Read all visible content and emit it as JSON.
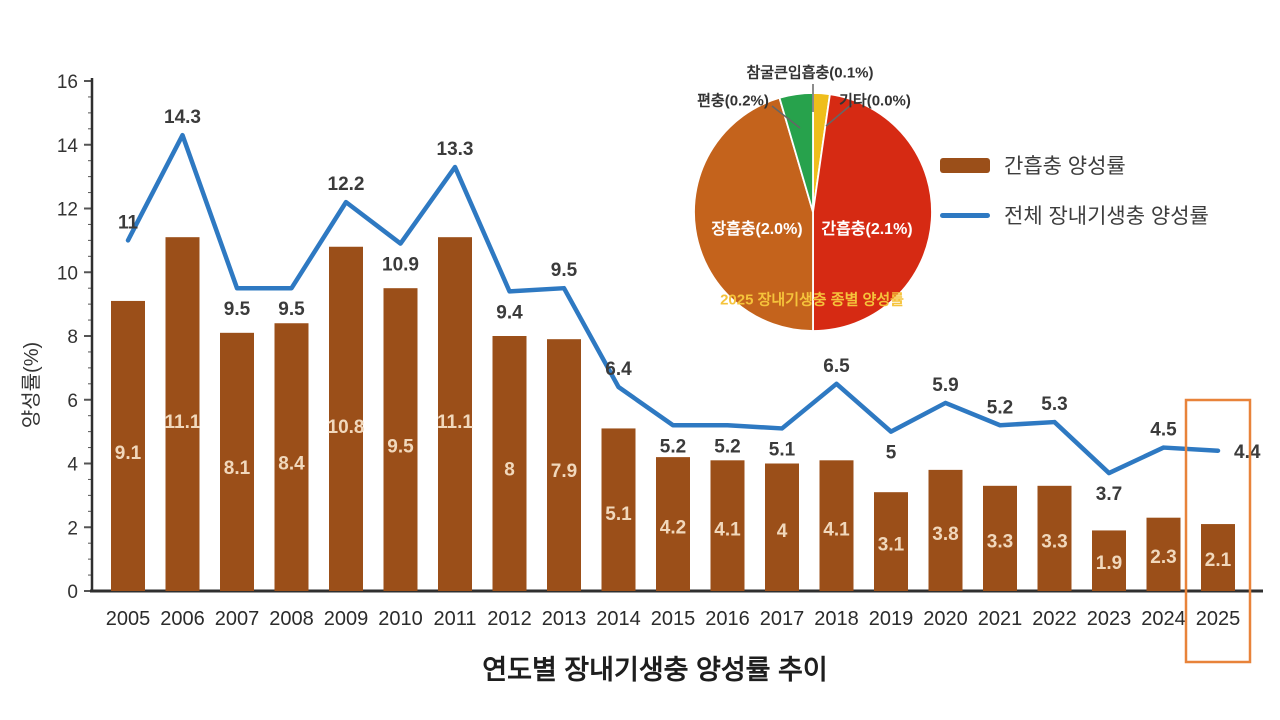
{
  "chart_data": [
    {
      "type": "bar+line",
      "title": "연도별 장내기생충 양성률 추이",
      "ylabel": "양성률(%)",
      "ylim": [
        0,
        16
      ],
      "ytick_step": 2,
      "grid": false,
      "legend_position": "top-right",
      "categories": [
        "2005",
        "2006",
        "2007",
        "2008",
        "2009",
        "2010",
        "2011",
        "2012",
        "2013",
        "2014",
        "2015",
        "2016",
        "2017",
        "2018",
        "2019",
        "2020",
        "2021",
        "2022",
        "2023",
        "2024",
        "2025"
      ],
      "series": [
        {
          "name": "간흡충 양성률",
          "type": "bar",
          "color": "#9B4F19",
          "values": [
            9.1,
            11.1,
            8.1,
            8.4,
            10.8,
            9.5,
            11.1,
            8,
            7.9,
            5.1,
            4.2,
            4.1,
            4,
            4.1,
            3.1,
            3.8,
            3.3,
            3.3,
            1.9,
            2.3,
            2.1
          ]
        },
        {
          "name": "전체 장내기생충 양성률",
          "type": "line",
          "color": "#2E79C2",
          "values": [
            11,
            14.3,
            9.5,
            9.5,
            12.2,
            10.9,
            13.3,
            9.4,
            9.5,
            6.4,
            5.2,
            5.2,
            5.1,
            6.5,
            5,
            5.9,
            5.2,
            5.3,
            3.7,
            4.5,
            4.4
          ],
          "label_positions": [
            "above",
            "above",
            "below",
            "below",
            "above",
            "below",
            "above",
            "below",
            "above",
            "above",
            "below",
            "below",
            "below",
            "above",
            "below",
            "above",
            "above",
            "above",
            "below",
            "above",
            "right"
          ]
        }
      ],
      "highlight": {
        "category": "2025",
        "box_color": "#E8833A"
      }
    },
    {
      "type": "pie",
      "title": "2025 장내기생충 종별 양성률",
      "title_color": "#F5C33B",
      "slices": [
        {
          "label": "간흡충(2.1%)",
          "value": 2.1,
          "color": "#D62A13",
          "label_style": "inside-right"
        },
        {
          "label": "장흡충(2.0%)",
          "value": 2.0,
          "color": "#C4631C",
          "label_style": "inside-left"
        },
        {
          "label": "편충(0.2%)",
          "value": 0.2,
          "color": "#27A24C",
          "label_style": "callout-left"
        },
        {
          "label": "참굴큰입흡충(0.1%)",
          "value": 0.1,
          "color": "#EFBE1B",
          "label_style": "callout-top"
        },
        {
          "label": "기타(0.0%)",
          "value": 0.0,
          "color": "#D9D9D9",
          "label_style": "callout-right"
        }
      ]
    }
  ],
  "legend": {
    "items": [
      {
        "label": "간흡충 양성률",
        "color": "#9B4F19",
        "marker": "bar"
      },
      {
        "label": "전체 장내기생충 양성률",
        "color": "#2E79C2",
        "marker": "line"
      }
    ]
  }
}
